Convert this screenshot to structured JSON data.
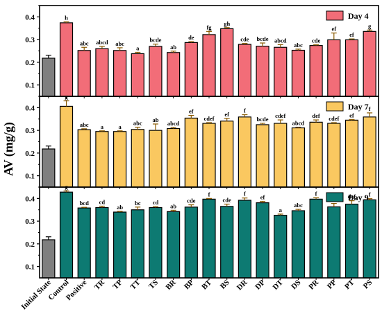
{
  "chart_data": {
    "type": "bar",
    "ylabel": "AV (mg/g)",
    "categories": [
      "Initial State",
      "Control",
      "Positive",
      "TR",
      "TP",
      "TT",
      "TS",
      "BR",
      "BP",
      "BT",
      "BS",
      "DR",
      "DP",
      "DT",
      "DS",
      "PR",
      "PP",
      "PT",
      "PS"
    ],
    "panels": [
      {
        "legend": "Day 4",
        "color": "#f26d78",
        "initial_color": "#7f7f7f",
        "ylim": [
          0.05,
          0.45
        ],
        "yticks": [
          0.1,
          0.2,
          0.3,
          0.4
        ],
        "values": [
          0.218,
          0.374,
          0.252,
          0.26,
          0.252,
          0.238,
          0.27,
          0.243,
          0.287,
          0.322,
          0.348,
          0.279,
          0.271,
          0.266,
          0.253,
          0.274,
          0.299,
          0.299,
          0.336
        ],
        "errors": [
          0.013,
          0.004,
          0.014,
          0.01,
          0.012,
          0.006,
          0.01,
          0.006,
          0.004,
          0.014,
          0.005,
          0.004,
          0.014,
          0.012,
          0.005,
          0.003,
          0.03,
          0.004,
          0.006
        ],
        "labels": [
          "",
          "h",
          "abc",
          "abcd",
          "abc",
          "a",
          "bcde",
          "ab",
          "de",
          "fg",
          "gh",
          "cde",
          "bcde",
          "abcd",
          "abc",
          "cde",
          "ef",
          "ef",
          "g"
        ]
      },
      {
        "legend": "Day 7",
        "color": "#fac860",
        "initial_color": "#7f7f7f",
        "ylim": [
          0.05,
          0.45
        ],
        "yticks": [
          0.1,
          0.2,
          0.3,
          0.4
        ],
        "values": [
          0.218,
          0.406,
          0.303,
          0.295,
          0.295,
          0.304,
          0.3,
          0.308,
          0.354,
          0.331,
          0.341,
          0.359,
          0.325,
          0.331,
          0.311,
          0.336,
          0.331,
          0.345,
          0.359
        ],
        "errors": [
          0.013,
          0.024,
          0.004,
          0.003,
          0.003,
          0.01,
          0.028,
          0.005,
          0.012,
          0.003,
          0.012,
          0.01,
          0.006,
          0.015,
          0.003,
          0.01,
          0.003,
          0.003,
          0.018
        ],
        "labels": [
          "",
          "g",
          "abc",
          "a",
          "a",
          "abc",
          "ab",
          "abcd",
          "ef",
          "cdef",
          "ef",
          "f",
          "bcde",
          "cdef",
          "abcd",
          "def",
          "cdef",
          "ef",
          "f"
        ]
      },
      {
        "legend": "Day 9",
        "color": "#0d7a72",
        "initial_color": "#7f7f7f",
        "ylim": [
          0.05,
          0.45
        ],
        "yticks": [
          0.1,
          0.2,
          0.3,
          0.4
        ],
        "values": [
          0.218,
          0.428,
          0.358,
          0.36,
          0.34,
          0.35,
          0.36,
          0.342,
          0.362,
          0.397,
          0.365,
          0.392,
          0.381,
          0.326,
          0.346,
          0.397,
          0.363,
          0.375,
          0.394
        ],
        "errors": [
          0.013,
          0.005,
          0.003,
          0.006,
          0.003,
          0.012,
          0.004,
          0.006,
          0.01,
          0.003,
          0.01,
          0.01,
          0.006,
          0.005,
          0.006,
          0.006,
          0.015,
          0.015,
          0.005
        ],
        "labels": [
          "",
          "g",
          "bcd",
          "cd",
          "ab",
          "bc",
          "cd",
          "ab",
          "cde",
          "f",
          "cde",
          "f",
          "ef",
          "a",
          "abc",
          "f",
          "cde",
          "def",
          "f"
        ]
      }
    ]
  }
}
